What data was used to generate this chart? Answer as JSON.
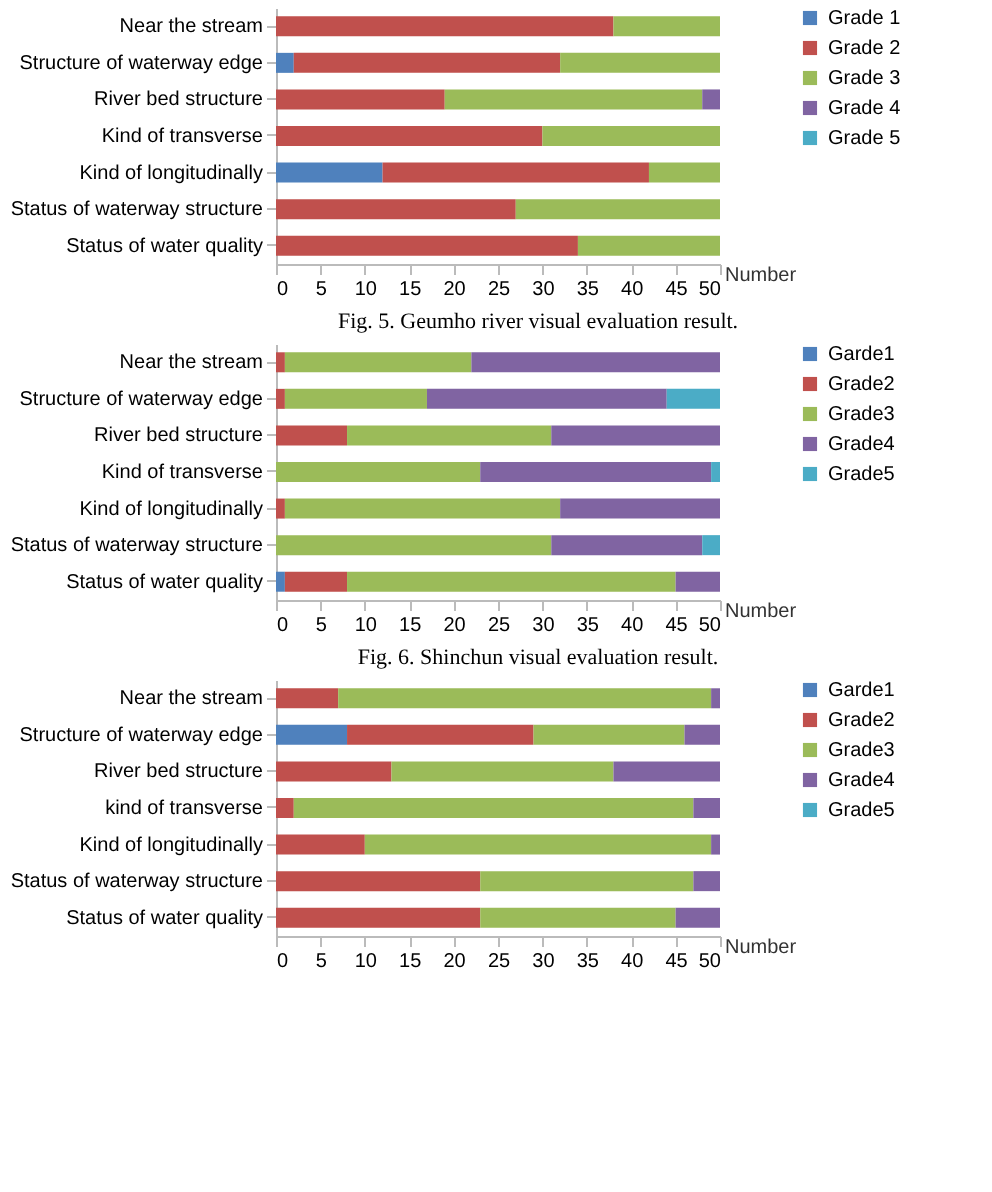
{
  "chart_data": [
    {
      "type": "bar",
      "orientation": "horizontal",
      "stacked": true,
      "xlabel": "Number",
      "legend": "right",
      "grid": false,
      "categories": [
        "Near the stream",
        "Structure of waterway edge",
        "River bed structure",
        "Kind of transverse",
        "Kind of longitudinally",
        "Status of waterway structure",
        "Status of water quality"
      ],
      "xlim": [
        0,
        50
      ],
      "xticks": [
        0,
        5,
        10,
        15,
        20,
        25,
        30,
        35,
        40,
        45,
        50
      ],
      "series": [
        {
          "name": "Grade 1",
          "color": "#4f81bd",
          "values": [
            0,
            2,
            0,
            0,
            12,
            0,
            0
          ]
        },
        {
          "name": "Grade 2",
          "color": "#c0504d",
          "values": [
            38,
            30,
            19,
            30,
            30,
            27,
            34
          ]
        },
        {
          "name": "Grade 3",
          "color": "#9bbb59",
          "values": [
            12,
            18,
            29,
            20,
            8,
            23,
            16
          ]
        },
        {
          "name": "Grade 4",
          "color": "#8064a2",
          "values": [
            0,
            0,
            2,
            0,
            0,
            0,
            0
          ]
        },
        {
          "name": "Grade 5",
          "color": "#4bacc6",
          "values": [
            0,
            0,
            0,
            0,
            0,
            0,
            0
          ]
        }
      ],
      "annotations": [
        "Fig. 5. Geumho river visual evaluation result."
      ]
    },
    {
      "type": "bar",
      "orientation": "horizontal",
      "stacked": true,
      "xlabel": "Number",
      "legend": "right",
      "grid": false,
      "categories": [
        "Near the stream",
        "Structure of waterway edge",
        "River bed structure",
        "Kind of transverse",
        "Kind of longitudinally",
        "Status of waterway structure",
        "Status of water quality"
      ],
      "xlim": [
        0,
        50
      ],
      "xticks": [
        0,
        5,
        10,
        15,
        20,
        25,
        30,
        35,
        40,
        45,
        50
      ],
      "series": [
        {
          "name": "Garde1",
          "color": "#4f81bd",
          "values": [
            0,
            0,
            0,
            0,
            0,
            0,
            1
          ]
        },
        {
          "name": "Grade2",
          "color": "#c0504d",
          "values": [
            1,
            1,
            8,
            0,
            1,
            0,
            7
          ]
        },
        {
          "name": "Grade3",
          "color": "#9bbb59",
          "values": [
            21,
            16,
            23,
            23,
            31,
            31,
            37
          ]
        },
        {
          "name": "Grade4",
          "color": "#8064a2",
          "values": [
            28,
            27,
            19,
            26,
            18,
            17,
            5
          ]
        },
        {
          "name": "Grade5",
          "color": "#4bacc6",
          "values": [
            0,
            6,
            0,
            1,
            0,
            2,
            0
          ]
        }
      ],
      "annotations": [
        "Fig. 6. Shinchun visual evaluation result."
      ]
    },
    {
      "type": "bar",
      "orientation": "horizontal",
      "stacked": true,
      "xlabel": "Number",
      "legend": "right",
      "grid": false,
      "categories": [
        "Near the stream",
        "Structure of waterway edge",
        "River bed structure",
        "kind of transverse",
        "Kind of longitudinally",
        "Status of waterway structure",
        "Status of water quality"
      ],
      "xlim": [
        0,
        50
      ],
      "xticks": [
        0,
        5,
        10,
        15,
        20,
        25,
        30,
        35,
        40,
        45,
        50
      ],
      "series": [
        {
          "name": "Garde1",
          "color": "#4f81bd",
          "values": [
            0,
            8,
            0,
            0,
            0,
            0,
            0
          ]
        },
        {
          "name": "Grade2",
          "color": "#c0504d",
          "values": [
            7,
            21,
            13,
            2,
            10,
            23,
            23
          ]
        },
        {
          "name": "Grade3",
          "color": "#9bbb59",
          "values": [
            42,
            17,
            25,
            45,
            39,
            24,
            22
          ]
        },
        {
          "name": "Grade4",
          "color": "#8064a2",
          "values": [
            1,
            4,
            12,
            3,
            1,
            3,
            5
          ]
        },
        {
          "name": "Grade5",
          "color": "#4bacc6",
          "values": [
            0,
            0,
            0,
            0,
            0,
            0,
            0
          ]
        }
      ]
    }
  ]
}
